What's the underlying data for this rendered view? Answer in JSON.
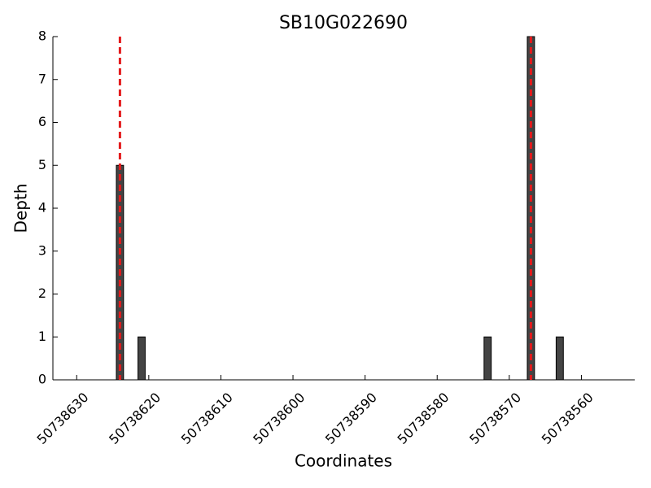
{
  "chart_data": {
    "type": "bar",
    "title": "SB10G022690",
    "xlabel": "Coordinates",
    "ylabel": "Depth",
    "x": [
      50738624,
      50738621,
      50738573,
      50738567,
      50738563
    ],
    "values": [
      5,
      1,
      1,
      8,
      1
    ],
    "bar_width": 1,
    "color": "#444444",
    "edgecolor": "#000000",
    "xlim": [
      50738633.3,
      50738552.6
    ],
    "xticks": [
      50738630,
      50738620,
      50738610,
      50738600,
      50738590,
      50738580,
      50738570,
      50738560
    ],
    "ylim": [
      0,
      8
    ],
    "yticks": [
      0,
      1,
      2,
      3,
      4,
      5,
      6,
      7,
      8
    ],
    "vlines": [
      50738624,
      50738567
    ],
    "vline_color": "#e31a1c"
  }
}
